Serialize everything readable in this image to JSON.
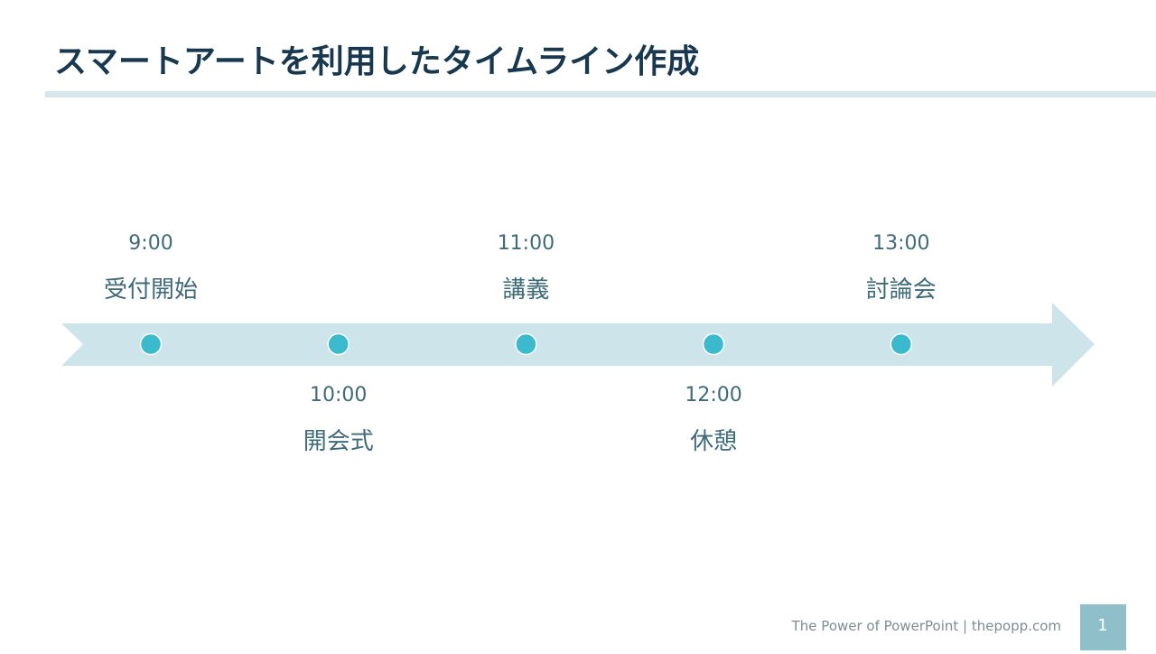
{
  "header": {
    "title": "スマートアートを利用したタイムライン作成"
  },
  "timeline": {
    "events": [
      {
        "time": "9:00",
        "label": "受付開始"
      },
      {
        "time": "10:00",
        "label": "開会式"
      },
      {
        "time": "11:00",
        "label": "講義"
      },
      {
        "time": "12:00",
        "label": "休憩"
      },
      {
        "time": "13:00",
        "label": "討論会"
      }
    ]
  },
  "footer": {
    "credit": "The Power of PowerPoint | thepopp.com",
    "page": "1"
  }
}
